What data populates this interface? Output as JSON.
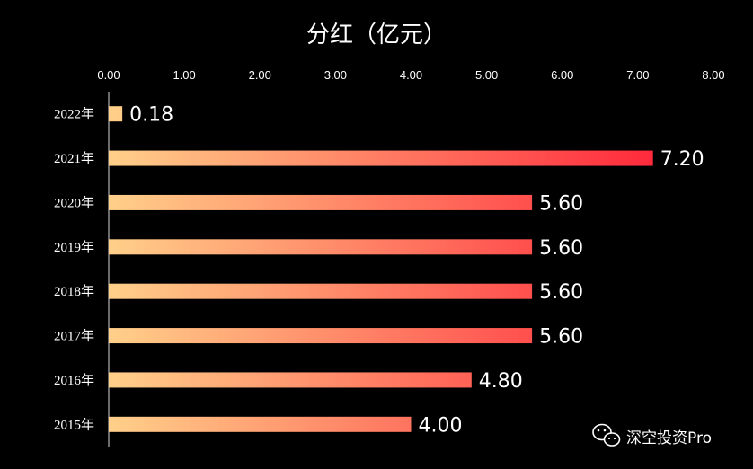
{
  "chart_data": {
    "type": "bar",
    "orientation": "horizontal",
    "title": "分红（亿元）",
    "xlabel": "",
    "ylabel": "",
    "xlim": [
      0,
      8
    ],
    "ticks": [
      "0.00",
      "1.00",
      "2.00",
      "3.00",
      "4.00",
      "5.00",
      "6.00",
      "7.00",
      "8.00"
    ],
    "tick_values": [
      0,
      1,
      2,
      3,
      4,
      5,
      6,
      7,
      8
    ],
    "categories": [
      "2022年",
      "2021年",
      "2020年",
      "2019年",
      "2018年",
      "2017年",
      "2016年",
      "2015年"
    ],
    "values": [
      0.18,
      7.2,
      5.6,
      5.6,
      5.6,
      5.6,
      4.8,
      4.0
    ],
    "value_labels": [
      "0.18",
      "7.20",
      "5.60",
      "5.60",
      "5.60",
      "5.60",
      "4.80",
      "4.00"
    ],
    "grid": false,
    "legend": "none",
    "colors": {
      "bar_start": "#FFD08A",
      "bar_end": "#FF2A3C",
      "background": "#000000",
      "text": "#ffffff"
    }
  },
  "watermark": {
    "icon": "wechat-icon",
    "text": "深空投资Pro"
  }
}
